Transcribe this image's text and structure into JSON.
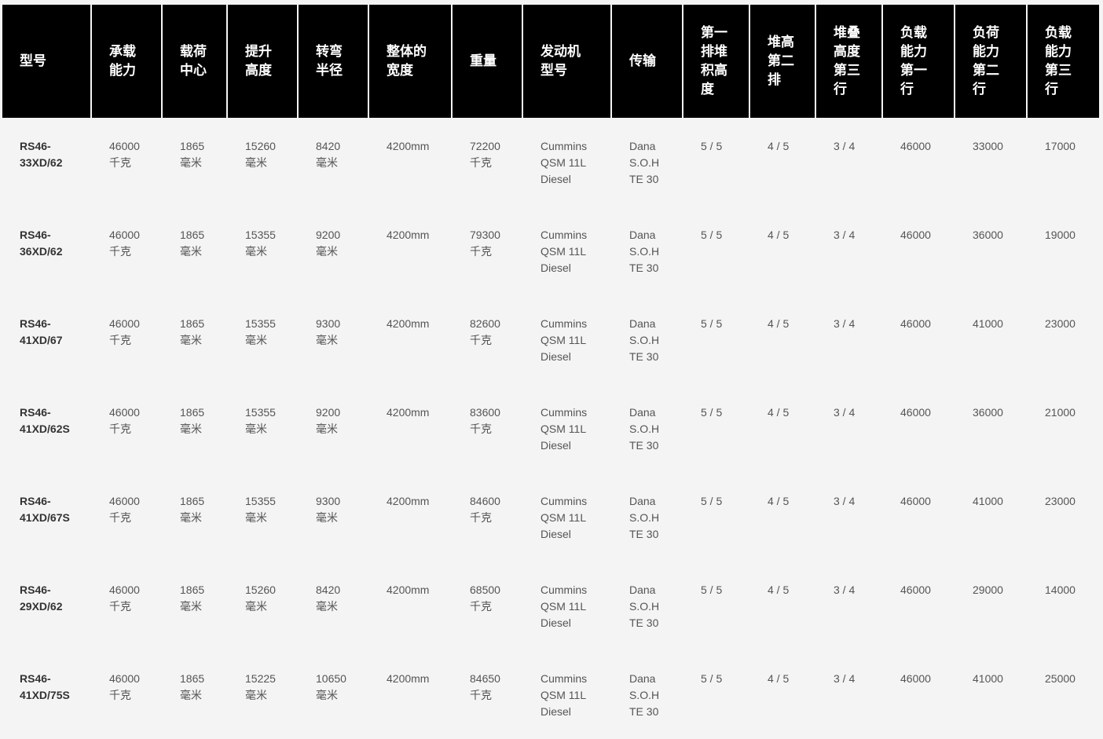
{
  "table": {
    "headers": [
      [
        "型号"
      ],
      [
        "承载",
        "能力"
      ],
      [
        "载荷",
        "中心"
      ],
      [
        "提升",
        "高度"
      ],
      [
        "转弯",
        "半径"
      ],
      [
        "整体的",
        "宽度"
      ],
      [
        "重量"
      ],
      [
        "发动机",
        "型号"
      ],
      [
        "传输"
      ],
      [
        "第一",
        "排堆",
        "积高",
        "度"
      ],
      [
        "堆高",
        "第二",
        "排"
      ],
      [
        "堆叠",
        "高度",
        "第三",
        "行"
      ],
      [
        "负载",
        "能力",
        "第一",
        "行"
      ],
      [
        "负荷",
        "能力",
        "第二",
        "行"
      ],
      [
        "负载",
        "能力",
        "第三",
        "行"
      ]
    ],
    "rows": [
      [
        [
          "RS46-",
          "33XD/62"
        ],
        [
          "46000",
          "千克"
        ],
        [
          "1865",
          "毫米"
        ],
        [
          "15260",
          "毫米"
        ],
        [
          "8420",
          "毫米"
        ],
        [
          "4200mm"
        ],
        [
          "72200",
          "千克"
        ],
        [
          "Cummins",
          "QSM 11L",
          "Diesel"
        ],
        [
          "Dana",
          "S.O.H",
          "TE 30"
        ],
        [
          "5 / 5"
        ],
        [
          "4 / 5"
        ],
        [
          "3 / 4"
        ],
        [
          "46000"
        ],
        [
          "33000"
        ],
        [
          "17000"
        ]
      ],
      [
        [
          "RS46-",
          "36XD/62"
        ],
        [
          "46000",
          "千克"
        ],
        [
          "1865",
          "毫米"
        ],
        [
          "15355",
          "毫米"
        ],
        [
          "9200",
          "毫米"
        ],
        [
          "4200mm"
        ],
        [
          "79300",
          "千克"
        ],
        [
          "Cummins",
          "QSM 11L",
          "Diesel"
        ],
        [
          "Dana",
          "S.O.H",
          "TE 30"
        ],
        [
          "5 / 5"
        ],
        [
          "4 / 5"
        ],
        [
          "3 / 4"
        ],
        [
          "46000"
        ],
        [
          "36000"
        ],
        [
          "19000"
        ]
      ],
      [
        [
          "RS46-",
          "41XD/67"
        ],
        [
          "46000",
          "千克"
        ],
        [
          "1865",
          "毫米"
        ],
        [
          "15355",
          "毫米"
        ],
        [
          "9300",
          "毫米"
        ],
        [
          "4200mm"
        ],
        [
          "82600",
          "千克"
        ],
        [
          "Cummins",
          "QSM 11L",
          "Diesel"
        ],
        [
          "Dana",
          "S.O.H",
          "TE 30"
        ],
        [
          "5 / 5"
        ],
        [
          "4 / 5"
        ],
        [
          "3 / 4"
        ],
        [
          "46000"
        ],
        [
          "41000"
        ],
        [
          "23000"
        ]
      ],
      [
        [
          "RS46-",
          "41XD/62S"
        ],
        [
          "46000",
          "千克"
        ],
        [
          "1865",
          "毫米"
        ],
        [
          "15355",
          "毫米"
        ],
        [
          "9200",
          "毫米"
        ],
        [
          "4200mm"
        ],
        [
          "83600",
          "千克"
        ],
        [
          "Cummins",
          "QSM 11L",
          "Diesel"
        ],
        [
          "Dana",
          "S.O.H",
          "TE 30"
        ],
        [
          "5 / 5"
        ],
        [
          "4 / 5"
        ],
        [
          "3 / 4"
        ],
        [
          "46000"
        ],
        [
          "36000"
        ],
        [
          "21000"
        ]
      ],
      [
        [
          "RS46-",
          "41XD/67S"
        ],
        [
          "46000",
          "千克"
        ],
        [
          "1865",
          "毫米"
        ],
        [
          "15355",
          "毫米"
        ],
        [
          "9300",
          "毫米"
        ],
        [
          "4200mm"
        ],
        [
          "84600",
          "千克"
        ],
        [
          "Cummins",
          "QSM 11L",
          "Diesel"
        ],
        [
          "Dana",
          "S.O.H",
          "TE 30"
        ],
        [
          "5 / 5"
        ],
        [
          "4 / 5"
        ],
        [
          "3 / 4"
        ],
        [
          "46000"
        ],
        [
          "41000"
        ],
        [
          "23000"
        ]
      ],
      [
        [
          "RS46-",
          "29XD/62"
        ],
        [
          "46000",
          "千克"
        ],
        [
          "1865",
          "毫米"
        ],
        [
          "15260",
          "毫米"
        ],
        [
          "8420",
          "毫米"
        ],
        [
          "4200mm"
        ],
        [
          "68500",
          "千克"
        ],
        [
          "Cummins",
          "QSM 11L",
          "Diesel"
        ],
        [
          "Dana",
          "S.O.H",
          "TE 30"
        ],
        [
          "5 / 5"
        ],
        [
          "4 / 5"
        ],
        [
          "3 / 4"
        ],
        [
          "46000"
        ],
        [
          "29000"
        ],
        [
          "14000"
        ]
      ],
      [
        [
          "RS46-",
          "41XD/75S"
        ],
        [
          "46000",
          "千克"
        ],
        [
          "1865",
          "毫米"
        ],
        [
          "15225",
          "毫米"
        ],
        [
          "10650",
          "毫米"
        ],
        [
          "4200mm"
        ],
        [
          "84650",
          "千克"
        ],
        [
          "Cummins",
          "QSM 11L",
          "Diesel"
        ],
        [
          "Dana",
          "S.O.H",
          "TE 30"
        ],
        [
          "5 / 5"
        ],
        [
          "4 / 5"
        ],
        [
          "3 / 4"
        ],
        [
          "46000"
        ],
        [
          "41000"
        ],
        [
          "25000"
        ]
      ]
    ]
  },
  "colors": {
    "header_bg": "#000000",
    "header_text": "#ffffff",
    "page_bg": "#f4f4f4",
    "body_text": "#555555"
  }
}
